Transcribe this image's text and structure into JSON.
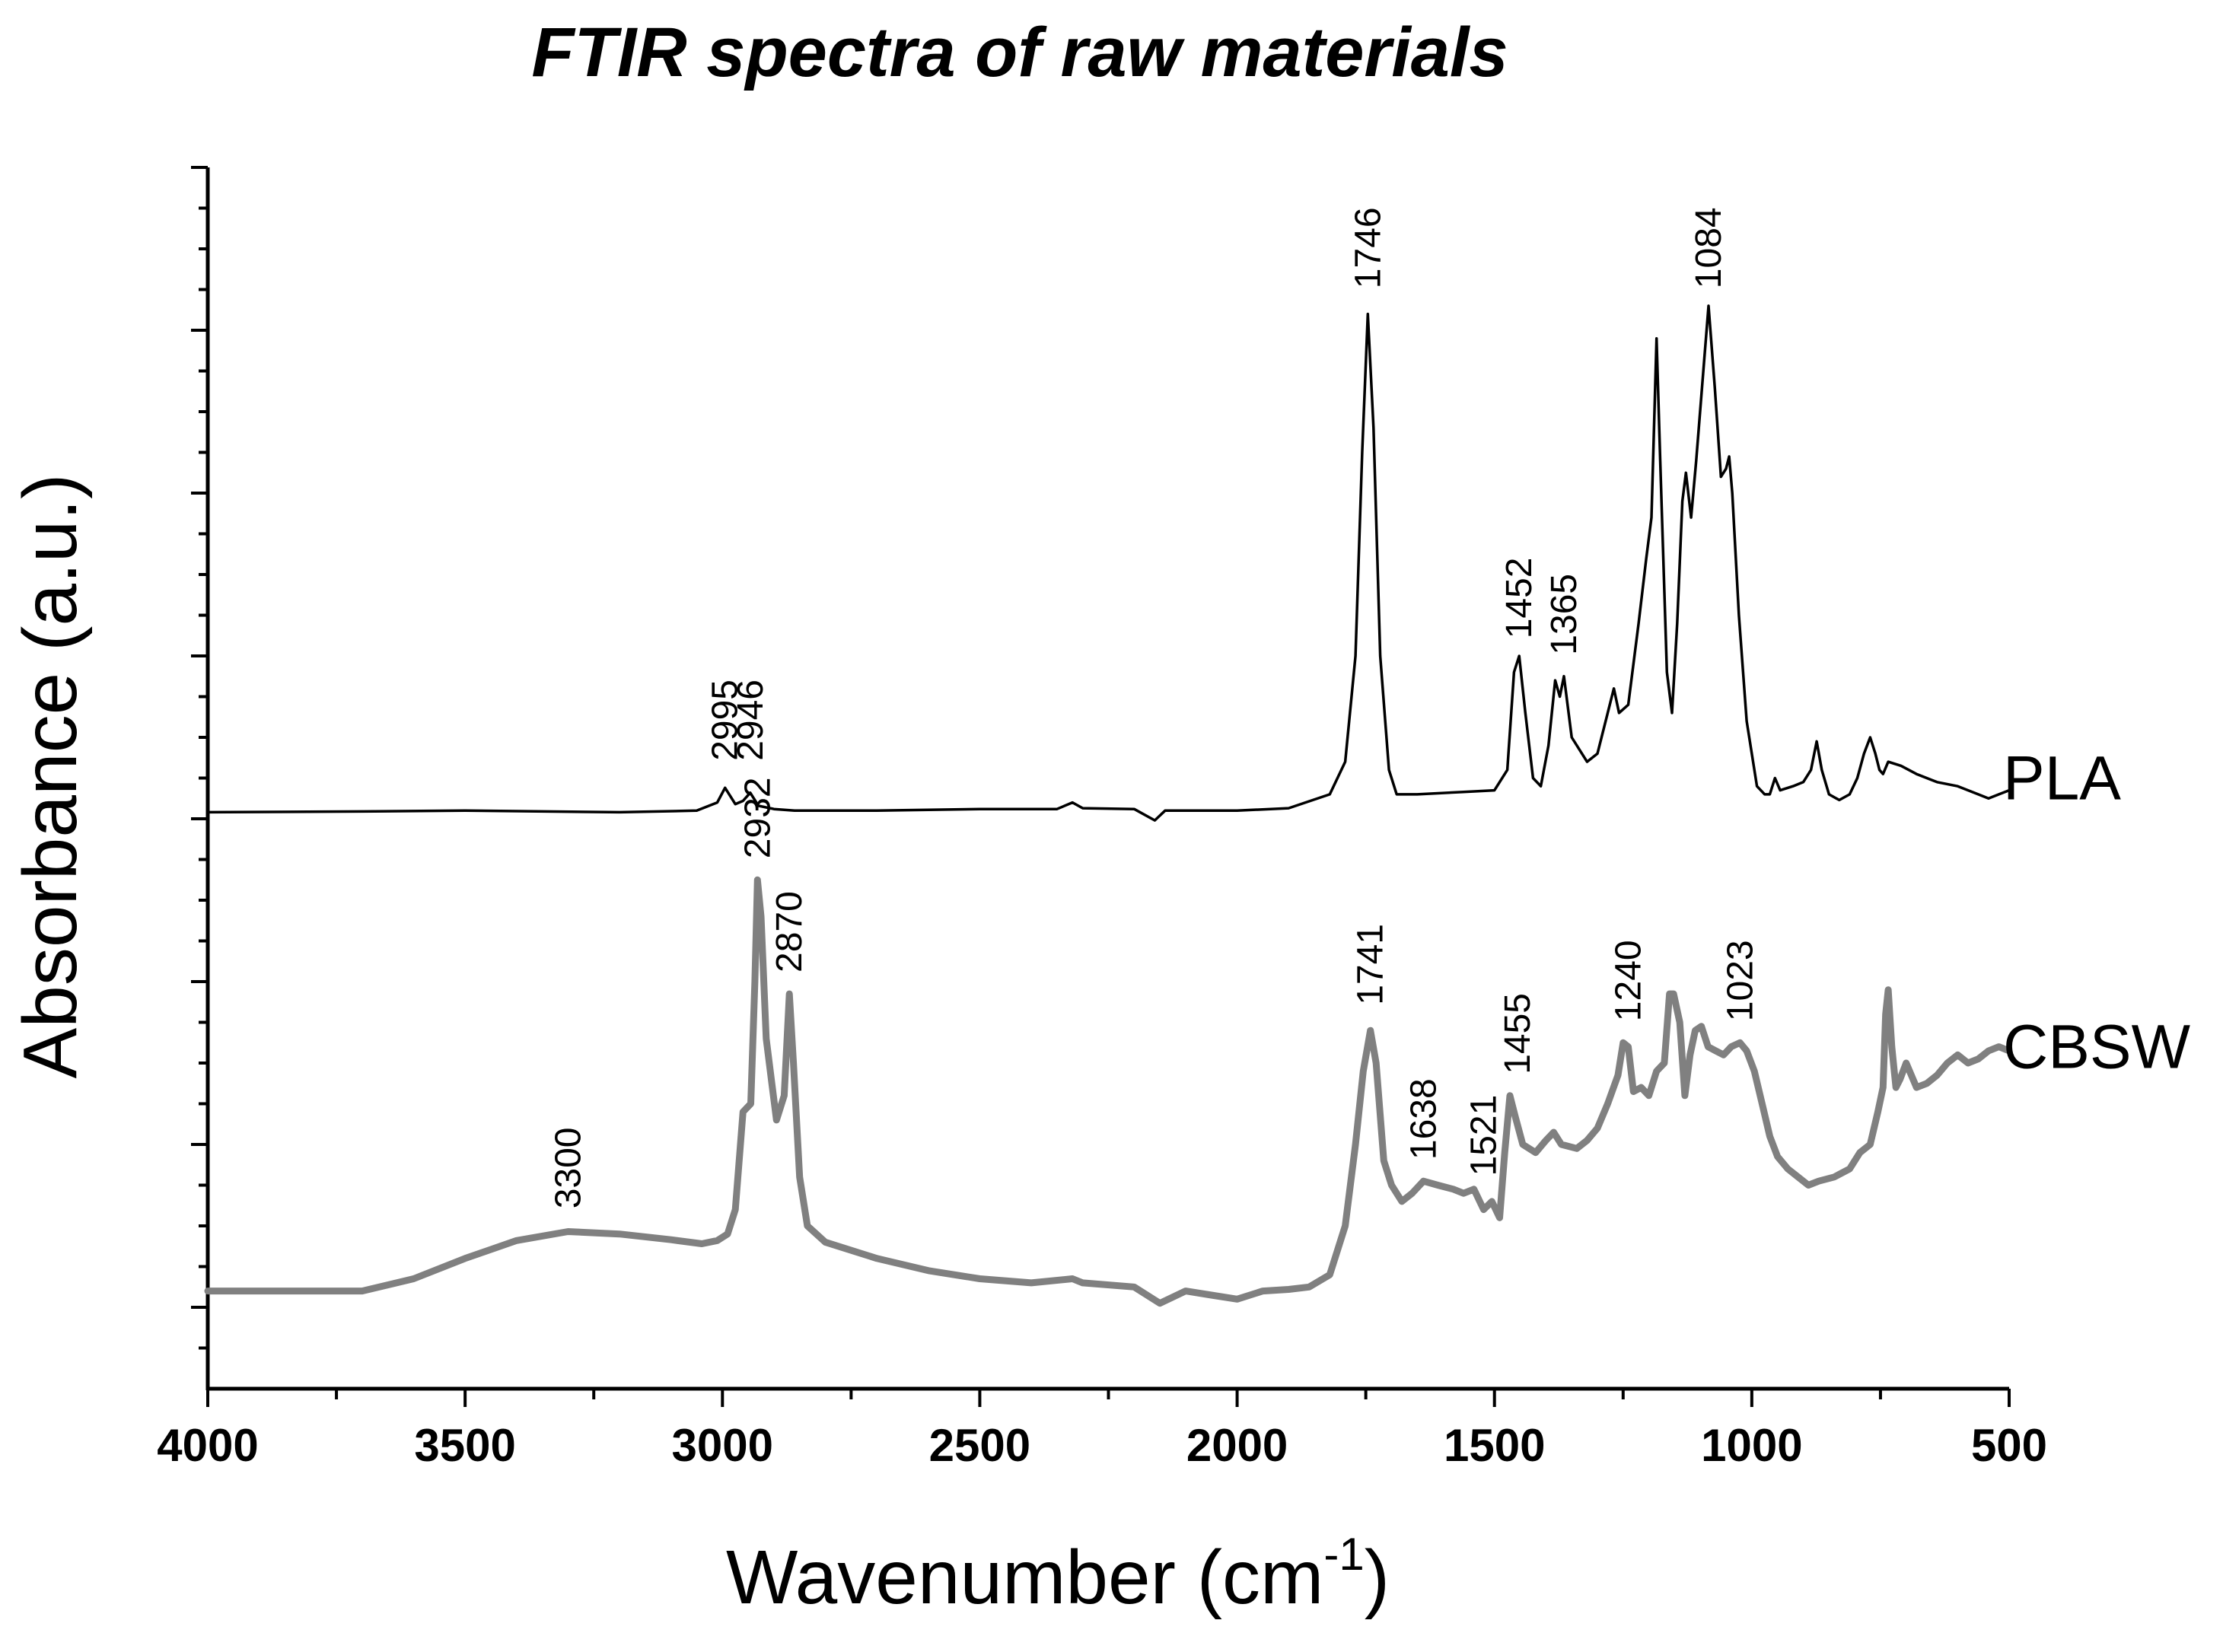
{
  "chart_data": {
    "type": "line",
    "title": "FTIR spectra of raw materials",
    "xlabel": "Wavenumber (cm",
    "xlabel_sup": "-1",
    "xlabel_close": ")",
    "ylabel": "Absorbance (a.u.)",
    "xlim": [
      4000,
      500
    ],
    "x_reversed": true,
    "ylim": [
      0,
      15
    ],
    "grid": false,
    "x_ticks": [
      4000,
      3500,
      3000,
      2500,
      2000,
      1500,
      1000,
      500
    ],
    "x_tick_labels": [
      "4000",
      "3500",
      "3000",
      "2500",
      "2000",
      "1500",
      "1000",
      "500"
    ],
    "y_major_ticks": [
      1,
      3,
      5,
      7,
      9,
      11,
      13,
      15
    ],
    "y_tick_labels_shown": false,
    "series": [
      {
        "name": "PLA",
        "color": "#000000",
        "line_width": "thin",
        "points": [
          [
            4000,
            7.08
          ],
          [
            3700,
            7.09
          ],
          [
            3500,
            7.1
          ],
          [
            3200,
            7.08
          ],
          [
            3050,
            7.1
          ],
          [
            3010,
            7.2
          ],
          [
            2995,
            7.38
          ],
          [
            2975,
            7.18
          ],
          [
            2960,
            7.22
          ],
          [
            2946,
            7.32
          ],
          [
            2930,
            7.16
          ],
          [
            2900,
            7.12
          ],
          [
            2860,
            7.1
          ],
          [
            2700,
            7.1
          ],
          [
            2500,
            7.12
          ],
          [
            2350,
            7.12
          ],
          [
            2320,
            7.2
          ],
          [
            2300,
            7.13
          ],
          [
            2200,
            7.12
          ],
          [
            2160,
            6.98
          ],
          [
            2140,
            7.1
          ],
          [
            2000,
            7.1
          ],
          [
            1900,
            7.13
          ],
          [
            1820,
            7.3
          ],
          [
            1790,
            7.7
          ],
          [
            1770,
            9.0
          ],
          [
            1757,
            11.5
          ],
          [
            1746,
            13.2
          ],
          [
            1735,
            11.8
          ],
          [
            1722,
            9.0
          ],
          [
            1705,
            7.6
          ],
          [
            1690,
            7.3
          ],
          [
            1650,
            7.3
          ],
          [
            1560,
            7.33
          ],
          [
            1500,
            7.35
          ],
          [
            1475,
            7.6
          ],
          [
            1462,
            8.8
          ],
          [
            1452,
            9.0
          ],
          [
            1440,
            8.3
          ],
          [
            1425,
            7.5
          ],
          [
            1410,
            7.4
          ],
          [
            1395,
            7.9
          ],
          [
            1382,
            8.7
          ],
          [
            1373,
            8.5
          ],
          [
            1365,
            8.75
          ],
          [
            1350,
            8.0
          ],
          [
            1320,
            7.7
          ],
          [
            1300,
            7.8
          ],
          [
            1280,
            8.3
          ],
          [
            1268,
            8.6
          ],
          [
            1258,
            8.3
          ],
          [
            1240,
            8.4
          ],
          [
            1220,
            9.4
          ],
          [
            1205,
            10.2
          ],
          [
            1195,
            10.7
          ],
          [
            1185,
            12.9
          ],
          [
            1178,
            11.4
          ],
          [
            1165,
            8.8
          ],
          [
            1155,
            8.3
          ],
          [
            1145,
            9.4
          ],
          [
            1135,
            10.9
          ],
          [
            1128,
            11.25
          ],
          [
            1118,
            10.7
          ],
          [
            1108,
            11.4
          ],
          [
            1098,
            12.2
          ],
          [
            1084,
            13.3
          ],
          [
            1072,
            12.3
          ],
          [
            1060,
            11.2
          ],
          [
            1050,
            11.3
          ],
          [
            1044,
            11.45
          ],
          [
            1038,
            11.0
          ],
          [
            1025,
            9.5
          ],
          [
            1010,
            8.2
          ],
          [
            990,
            7.4
          ],
          [
            975,
            7.3
          ],
          [
            965,
            7.3
          ],
          [
            955,
            7.5
          ],
          [
            945,
            7.35
          ],
          [
            920,
            7.4
          ],
          [
            900,
            7.45
          ],
          [
            885,
            7.6
          ],
          [
            874,
            7.95
          ],
          [
            864,
            7.6
          ],
          [
            850,
            7.3
          ],
          [
            830,
            7.23
          ],
          [
            810,
            7.3
          ],
          [
            795,
            7.5
          ],
          [
            782,
            7.8
          ],
          [
            770,
            8.0
          ],
          [
            760,
            7.8
          ],
          [
            752,
            7.6
          ],
          [
            745,
            7.55
          ],
          [
            735,
            7.7
          ],
          [
            710,
            7.65
          ],
          [
            680,
            7.55
          ],
          [
            640,
            7.45
          ],
          [
            600,
            7.4
          ],
          [
            560,
            7.3
          ],
          [
            540,
            7.25
          ],
          [
            520,
            7.3
          ],
          [
            500,
            7.35
          ]
        ]
      },
      {
        "name": "CBSW",
        "color": "#808080",
        "line_width": "thick",
        "points": [
          [
            4000,
            1.2
          ],
          [
            3850,
            1.2
          ],
          [
            3700,
            1.2
          ],
          [
            3600,
            1.35
          ],
          [
            3500,
            1.6
          ],
          [
            3400,
            1.82
          ],
          [
            3300,
            1.93
          ],
          [
            3200,
            1.9
          ],
          [
            3100,
            1.83
          ],
          [
            3040,
            1.78
          ],
          [
            3010,
            1.82
          ],
          [
            2990,
            1.9
          ],
          [
            2975,
            2.2
          ],
          [
            2960,
            3.4
          ],
          [
            2945,
            3.5
          ],
          [
            2937,
            5.0
          ],
          [
            2932,
            6.25
          ],
          [
            2925,
            5.8
          ],
          [
            2915,
            4.3
          ],
          [
            2905,
            3.8
          ],
          [
            2895,
            3.3
          ],
          [
            2880,
            3.6
          ],
          [
            2870,
            4.85
          ],
          [
            2862,
            4.0
          ],
          [
            2850,
            2.6
          ],
          [
            2835,
            2.0
          ],
          [
            2800,
            1.8
          ],
          [
            2700,
            1.6
          ],
          [
            2600,
            1.45
          ],
          [
            2500,
            1.35
          ],
          [
            2400,
            1.3
          ],
          [
            2320,
            1.35
          ],
          [
            2300,
            1.3
          ],
          [
            2200,
            1.25
          ],
          [
            2150,
            1.05
          ],
          [
            2100,
            1.2
          ],
          [
            2050,
            1.15
          ],
          [
            2000,
            1.1
          ],
          [
            1950,
            1.2
          ],
          [
            1900,
            1.22
          ],
          [
            1860,
            1.25
          ],
          [
            1820,
            1.4
          ],
          [
            1790,
            2.0
          ],
          [
            1770,
            3.0
          ],
          [
            1755,
            3.9
          ],
          [
            1741,
            4.4
          ],
          [
            1730,
            4.0
          ],
          [
            1715,
            2.8
          ],
          [
            1700,
            2.5
          ],
          [
            1680,
            2.3
          ],
          [
            1660,
            2.4
          ],
          [
            1638,
            2.55
          ],
          [
            1610,
            2.5
          ],
          [
            1580,
            2.45
          ],
          [
            1560,
            2.4
          ],
          [
            1540,
            2.45
          ],
          [
            1521,
            2.2
          ],
          [
            1505,
            2.3
          ],
          [
            1490,
            2.1
          ],
          [
            1480,
            2.9
          ],
          [
            1470,
            3.6
          ],
          [
            1460,
            3.35
          ],
          [
            1445,
            3.0
          ],
          [
            1420,
            2.9
          ],
          [
            1400,
            3.05
          ],
          [
            1385,
            3.15
          ],
          [
            1370,
            3.0
          ],
          [
            1340,
            2.95
          ],
          [
            1320,
            3.05
          ],
          [
            1300,
            3.2
          ],
          [
            1280,
            3.5
          ],
          [
            1260,
            3.85
          ],
          [
            1250,
            4.25
          ],
          [
            1240,
            4.2
          ],
          [
            1230,
            3.65
          ],
          [
            1215,
            3.7
          ],
          [
            1200,
            3.6
          ],
          [
            1185,
            3.9
          ],
          [
            1170,
            4.0
          ],
          [
            1160,
            4.85
          ],
          [
            1152,
            4.85
          ],
          [
            1140,
            4.5
          ],
          [
            1130,
            3.6
          ],
          [
            1120,
            4.1
          ],
          [
            1110,
            4.4
          ],
          [
            1098,
            4.45
          ],
          [
            1085,
            4.2
          ],
          [
            1070,
            4.15
          ],
          [
            1055,
            4.1
          ],
          [
            1040,
            4.2
          ],
          [
            1023,
            4.25
          ],
          [
            1010,
            4.15
          ],
          [
            995,
            3.9
          ],
          [
            980,
            3.5
          ],
          [
            965,
            3.1
          ],
          [
            950,
            2.85
          ],
          [
            930,
            2.7
          ],
          [
            910,
            2.6
          ],
          [
            890,
            2.5
          ],
          [
            870,
            2.55
          ],
          [
            840,
            2.6
          ],
          [
            810,
            2.7
          ],
          [
            790,
            2.9
          ],
          [
            770,
            3.0
          ],
          [
            755,
            3.4
          ],
          [
            745,
            3.7
          ],
          [
            740,
            4.6
          ],
          [
            735,
            4.9
          ],
          [
            728,
            4.2
          ],
          [
            720,
            3.7
          ],
          [
            712,
            3.8
          ],
          [
            700,
            4.0
          ],
          [
            680,
            3.7
          ],
          [
            660,
            3.75
          ],
          [
            640,
            3.85
          ],
          [
            620,
            4.0
          ],
          [
            600,
            4.1
          ],
          [
            580,
            4.0
          ],
          [
            560,
            4.05
          ],
          [
            540,
            4.15
          ],
          [
            520,
            4.2
          ],
          [
            500,
            4.15
          ]
        ]
      }
    ],
    "annotations": [
      {
        "text": "2995",
        "x": 2995,
        "y": 7.6,
        "series": "PLA"
      },
      {
        "text": "2946",
        "x": 2946,
        "y": 7.6,
        "series": "PLA"
      },
      {
        "text": "1746",
        "x": 1746,
        "y": 13.4,
        "series": "PLA"
      },
      {
        "text": "1452",
        "x": 1452,
        "y": 9.1,
        "series": "PLA"
      },
      {
        "text": "1365",
        "x": 1365,
        "y": 8.9,
        "series": "PLA"
      },
      {
        "text": "1084",
        "x": 1084,
        "y": 13.4,
        "series": "PLA"
      },
      {
        "text": "3300",
        "x": 3300,
        "y": 2.1,
        "series": "CBSW"
      },
      {
        "text": "2932",
        "x": 2932,
        "y": 6.4,
        "series": "CBSW"
      },
      {
        "text": "2870",
        "x": 2870,
        "y": 5.0,
        "series": "CBSW"
      },
      {
        "text": "1741",
        "x": 1741,
        "y": 4.6,
        "series": "CBSW"
      },
      {
        "text": "1638",
        "x": 1638,
        "y": 2.7,
        "series": "CBSW"
      },
      {
        "text": "1521",
        "x": 1521,
        "y": 2.5,
        "series": "CBSW"
      },
      {
        "text": "1455",
        "x": 1455,
        "y": 3.75,
        "series": "CBSW"
      },
      {
        "text": "1240",
        "x": 1240,
        "y": 4.4,
        "series": "CBSW"
      },
      {
        "text": "1023",
        "x": 1023,
        "y": 4.4,
        "series": "CBSW"
      }
    ],
    "series_labels": [
      {
        "text": "PLA",
        "x": 500,
        "y": 7.5
      },
      {
        "text": "CBSW",
        "x": 500,
        "y": 4.2
      }
    ]
  }
}
